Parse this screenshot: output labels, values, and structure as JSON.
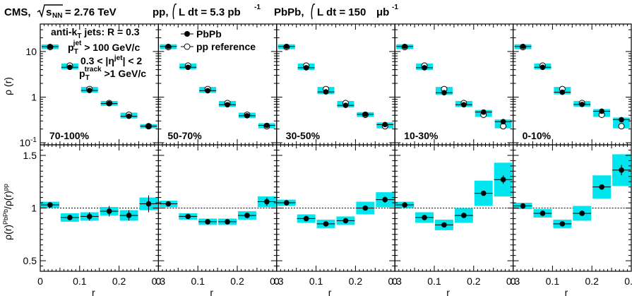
{
  "header": {
    "experiment": "CMS,",
    "energy_sqrt": "s",
    "energy_sub": "NN",
    "energy_value": "= 2.76 TeV",
    "pp_prefix": "pp,",
    "lumi_int": "L dt = 5.3 pb",
    "lumi_pp_exp": "-1",
    "pbpb_prefix": "PbPb,",
    "lumi_pbpb_int": "L dt = 150",
    "lumi_pbpb_unit": "μb",
    "lumi_pbpb_exp": "-1"
  },
  "selection": {
    "jets_a": "anti-k",
    "jets_sub": "T",
    "jets_b": " jets: R = 0.3",
    "pt_jet_a": "p",
    "pt_jet_sub": "T",
    "pt_jet_sup": "jet",
    "pt_jet_b": " > 100 GeV/c",
    "eta_a": "0.3 < |η",
    "eta_sup": "jet",
    "eta_b": "| < 2",
    "pt_trk_a": "p",
    "pt_trk_sub": "T",
    "pt_trk_sup": "track",
    "pt_trk_b": " >1 GeV/c"
  },
  "legend": {
    "pbpb": "PbPb",
    "pp": "pp reference"
  },
  "colors": {
    "syst_band": "#00e5ee",
    "marker": "#000000",
    "reference_line": "#000000"
  },
  "chart_data": {
    "type": "scatter",
    "layout": "2 rows x 5 columns, shared axes; upper row logarithmic y, lower row linear ratio",
    "x": {
      "label": "r",
      "bin_centers": [
        0.025,
        0.075,
        0.125,
        0.175,
        0.225,
        0.275
      ],
      "bin_half_width": 0.025,
      "range": [
        0,
        0.3
      ],
      "ticks": [
        "0",
        "0.1",
        "0.2",
        "0.3"
      ]
    },
    "top": {
      "ylabel": "ρ (r)",
      "scale": "log",
      "ylim": [
        0.09,
        40
      ],
      "ticks": [
        {
          "v": 10,
          "base": "10",
          "exp": ""
        },
        {
          "v": 1,
          "base": "1",
          "exp": ""
        },
        {
          "v": 0.1,
          "base": "10",
          "exp": "-1"
        }
      ]
    },
    "bottom": {
      "ylabel": "ρ(r)^PbPb/ρ(r)^pp",
      "ylabel_base": "ρ(r)",
      "ylabel_sup1": "PbPb",
      "ylabel_mid": "/ρ(r)",
      "ylabel_sup2": "pp",
      "scale": "linear",
      "ylim": [
        0.4,
        1.6
      ],
      "ticks": [
        "0.5",
        "1",
        "1.5"
      ],
      "reference_line": 1
    },
    "centrality_bins": [
      {
        "label": "70-100%",
        "pbpb": [
          12.8,
          4.5,
          1.4,
          0.72,
          0.38,
          0.23
        ],
        "pp": [
          12.5,
          4.9,
          1.5,
          0.74,
          0.41,
          0.23
        ],
        "ratio": [
          1.03,
          0.91,
          0.92,
          0.97,
          0.93,
          1.04
        ],
        "ratio_syst": [
          0.03,
          0.04,
          0.04,
          0.04,
          0.05,
          0.06
        ],
        "ratio_stat": [
          0.01,
          0.02,
          0.04,
          0.05,
          0.05,
          0.08
        ]
      },
      {
        "label": "50-70%",
        "pbpb": [
          12.9,
          4.5,
          1.38,
          0.68,
          0.39,
          0.24
        ],
        "pp": [
          12.5,
          4.9,
          1.5,
          0.74,
          0.41,
          0.23
        ],
        "ratio": [
          1.04,
          0.92,
          0.87,
          0.87,
          0.93,
          1.06
        ],
        "ratio_syst": [
          0.03,
          0.03,
          0.03,
          0.03,
          0.04,
          0.05
        ],
        "ratio_stat": [
          0.01,
          0.01,
          0.01,
          0.01,
          0.02,
          0.04
        ]
      },
      {
        "label": "30-50%",
        "pbpb": [
          12.9,
          4.4,
          1.3,
          0.66,
          0.42,
          0.25
        ],
        "pp": [
          12.5,
          4.9,
          1.5,
          0.74,
          0.41,
          0.23
        ],
        "ratio": [
          1.05,
          0.9,
          0.85,
          0.88,
          1.0,
          1.08
        ],
        "ratio_syst": [
          0.03,
          0.04,
          0.04,
          0.04,
          0.06,
          0.07
        ],
        "ratio_stat": [
          0.01,
          0.01,
          0.01,
          0.01,
          0.02,
          0.03
        ]
      },
      {
        "label": "10-30%",
        "pbpb": [
          12.9,
          4.4,
          1.25,
          0.68,
          0.47,
          0.29
        ],
        "pp": [
          12.5,
          4.9,
          1.5,
          0.74,
          0.41,
          0.23
        ],
        "ratio": [
          1.03,
          0.91,
          0.84,
          0.93,
          1.14,
          1.27
        ],
        "ratio_syst": [
          0.03,
          0.05,
          0.05,
          0.07,
          0.12,
          0.16
        ],
        "ratio_stat": [
          0.01,
          0.01,
          0.01,
          0.01,
          0.02,
          0.04
        ]
      },
      {
        "label": "0-10%",
        "pbpb": [
          12.9,
          4.5,
          1.28,
          0.69,
          0.49,
          0.32
        ],
        "pp": [
          12.5,
          4.9,
          1.5,
          0.74,
          0.41,
          0.23
        ],
        "ratio": [
          1.02,
          0.95,
          0.85,
          0.95,
          1.2,
          1.36
        ],
        "ratio_syst": [
          0.03,
          0.04,
          0.04,
          0.07,
          0.11,
          0.15
        ],
        "ratio_stat": [
          0.01,
          0.01,
          0.01,
          0.01,
          0.02,
          0.05
        ]
      }
    ]
  }
}
